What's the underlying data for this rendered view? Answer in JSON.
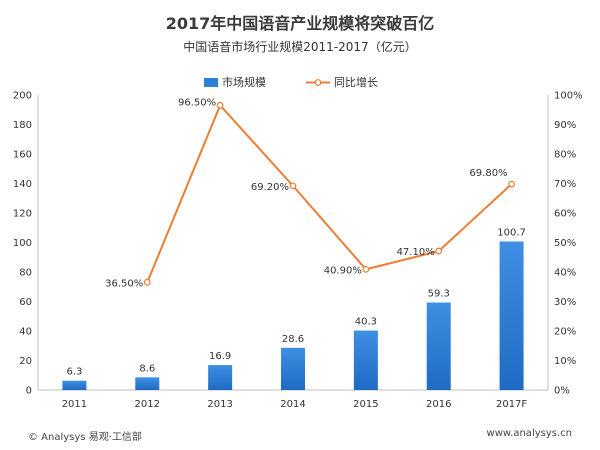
{
  "chart_data": {
    "type": "bar",
    "title": "2017年中国语音产业规模将突破百亿",
    "subtitle": "中国语音市场行业规模2011-2017（亿元）",
    "categories": [
      "2011",
      "2012",
      "2013",
      "2014",
      "2015",
      "2016",
      "2017F"
    ],
    "series": [
      {
        "name": "市场规模",
        "type": "bar",
        "axis": "left",
        "values": [
          6.3,
          8.6,
          16.9,
          28.6,
          40.3,
          59.3,
          100.7
        ],
        "labels": [
          "6.3",
          "8.6",
          "16.9",
          "28.6",
          "40.3",
          "59.3",
          "100.7"
        ],
        "color": "#2f7fd6"
      },
      {
        "name": "同比增长",
        "type": "line",
        "axis": "right",
        "values": [
          null,
          36.5,
          96.5,
          69.2,
          40.9,
          47.1,
          69.8
        ],
        "labels": [
          "",
          "36.50%",
          "96.50%",
          "69.20%",
          "40.90%",
          "47.10%",
          "69.80%"
        ],
        "color": "#ed7d31"
      }
    ],
    "y_left": {
      "ylim": [
        0,
        200
      ],
      "ticks": [
        "0",
        "20",
        "40",
        "60",
        "80",
        "100",
        "120",
        "140",
        "160",
        "180",
        "200"
      ]
    },
    "y_right": {
      "ylim": [
        0,
        100
      ],
      "ticks": [
        "0%",
        "10%",
        "20%",
        "30%",
        "40%",
        "50%",
        "60%",
        "70%",
        "80%",
        "90%",
        "100%"
      ]
    },
    "legend": "top-center",
    "grid": false
  },
  "footer": {
    "source": "© Analysys 易观·工信部",
    "website": "www.analysys.cn"
  }
}
